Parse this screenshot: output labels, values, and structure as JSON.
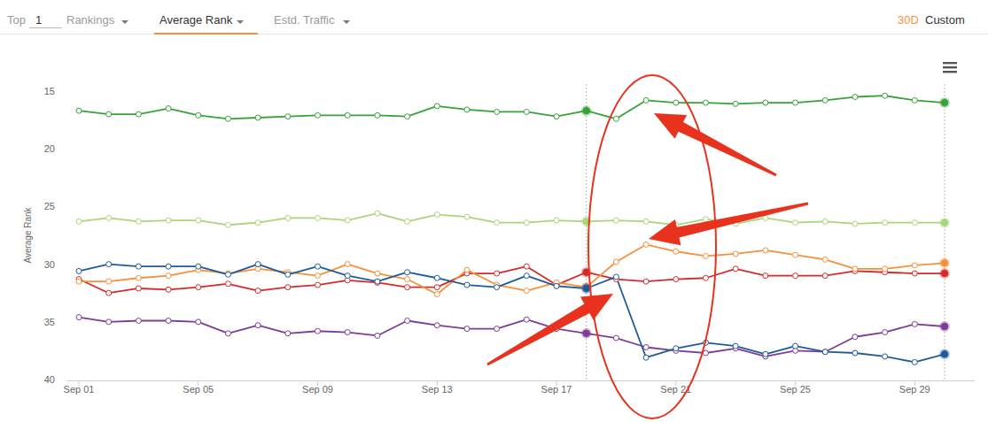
{
  "chart_data": {
    "type": "line",
    "y_label": "Average Rank",
    "categories": [
      "Sep 01",
      null,
      null,
      null,
      "Sep 05",
      null,
      null,
      null,
      "Sep 09",
      null,
      null,
      null,
      "Sep 13",
      null,
      null,
      null,
      "Sep 17",
      null,
      null,
      null,
      "Sep 21",
      null,
      null,
      null,
      "Sep 25",
      null,
      null,
      null,
      "Sep 29",
      null
    ],
    "ylim": [
      40,
      15
    ],
    "yticks": [
      15,
      20,
      25,
      30,
      35,
      40
    ],
    "grid": false,
    "marker": "circle",
    "series": [
      {
        "color": "#a9d67a",
        "values": [
          26.3,
          26.0,
          26.3,
          26.2,
          26.2,
          26.6,
          26.4,
          26.0,
          26.0,
          26.2,
          25.6,
          26.3,
          25.7,
          25.9,
          26.4,
          26.4,
          26.2,
          26.3,
          26.2,
          26.3,
          26.6,
          26.1,
          26.5,
          26.0,
          26.4,
          26.3,
          26.5,
          26.4,
          26.4,
          26.4
        ]
      },
      {
        "color": "#7d3c98",
        "values": [
          34.6,
          35.0,
          34.9,
          34.9,
          35.0,
          36.0,
          35.3,
          36.0,
          35.8,
          35.9,
          36.2,
          34.9,
          35.3,
          35.6,
          35.6,
          34.8,
          35.6,
          36.0,
          36.4,
          37.2,
          37.5,
          37.7,
          37.3,
          38.0,
          37.5,
          37.6,
          36.3,
          35.9,
          35.2,
          35.4
        ]
      },
      {
        "color": "#d62a2a",
        "values": [
          31.3,
          32.5,
          32.1,
          32.2,
          32.0,
          31.7,
          32.3,
          32.0,
          31.8,
          31.4,
          31.6,
          32.0,
          32.0,
          30.8,
          30.8,
          30.2,
          31.8,
          30.7,
          31.3,
          31.5,
          31.3,
          31.2,
          30.4,
          31.0,
          31.0,
          31.0,
          30.6,
          30.7,
          30.8,
          30.8
        ]
      },
      {
        "color": "#f5913a",
        "values": [
          31.5,
          31.5,
          31.2,
          31.0,
          30.5,
          30.8,
          30.4,
          30.7,
          31.0,
          30.0,
          30.8,
          31.3,
          32.6,
          30.5,
          31.8,
          32.3,
          31.6,
          32.0,
          29.8,
          28.3,
          28.9,
          29.3,
          29.1,
          28.8,
          29.2,
          29.6,
          30.4,
          30.4,
          30.1,
          29.9
        ]
      },
      {
        "color": "#1f5b9c",
        "values": [
          30.6,
          30.0,
          30.2,
          30.2,
          30.2,
          30.9,
          30.0,
          30.9,
          30.2,
          31.0,
          31.5,
          30.7,
          31.2,
          31.8,
          32.0,
          31.0,
          31.9,
          32.1,
          31.1,
          38.1,
          37.3,
          36.8,
          37.1,
          37.8,
          37.1,
          37.6,
          37.7,
          38.0,
          38.5,
          37.8
        ]
      },
      {
        "color": "#36a336",
        "values": [
          16.7,
          17.0,
          17.0,
          16.5,
          17.1,
          17.4,
          17.3,
          17.2,
          17.1,
          17.1,
          17.1,
          17.2,
          16.3,
          16.6,
          16.8,
          16.8,
          17.2,
          16.7,
          17.4,
          15.8,
          16.0,
          16.0,
          16.1,
          16.0,
          16.0,
          15.8,
          15.5,
          15.4,
          15.8,
          16.0
        ]
      }
    ]
  },
  "toolbar": {
    "top_label": "Top",
    "top_value": 1,
    "rankings": "Rankings",
    "average_rank": "Average Rank",
    "traffic": "Estd. Traffic",
    "period": "30D",
    "custom": "Custom"
  }
}
